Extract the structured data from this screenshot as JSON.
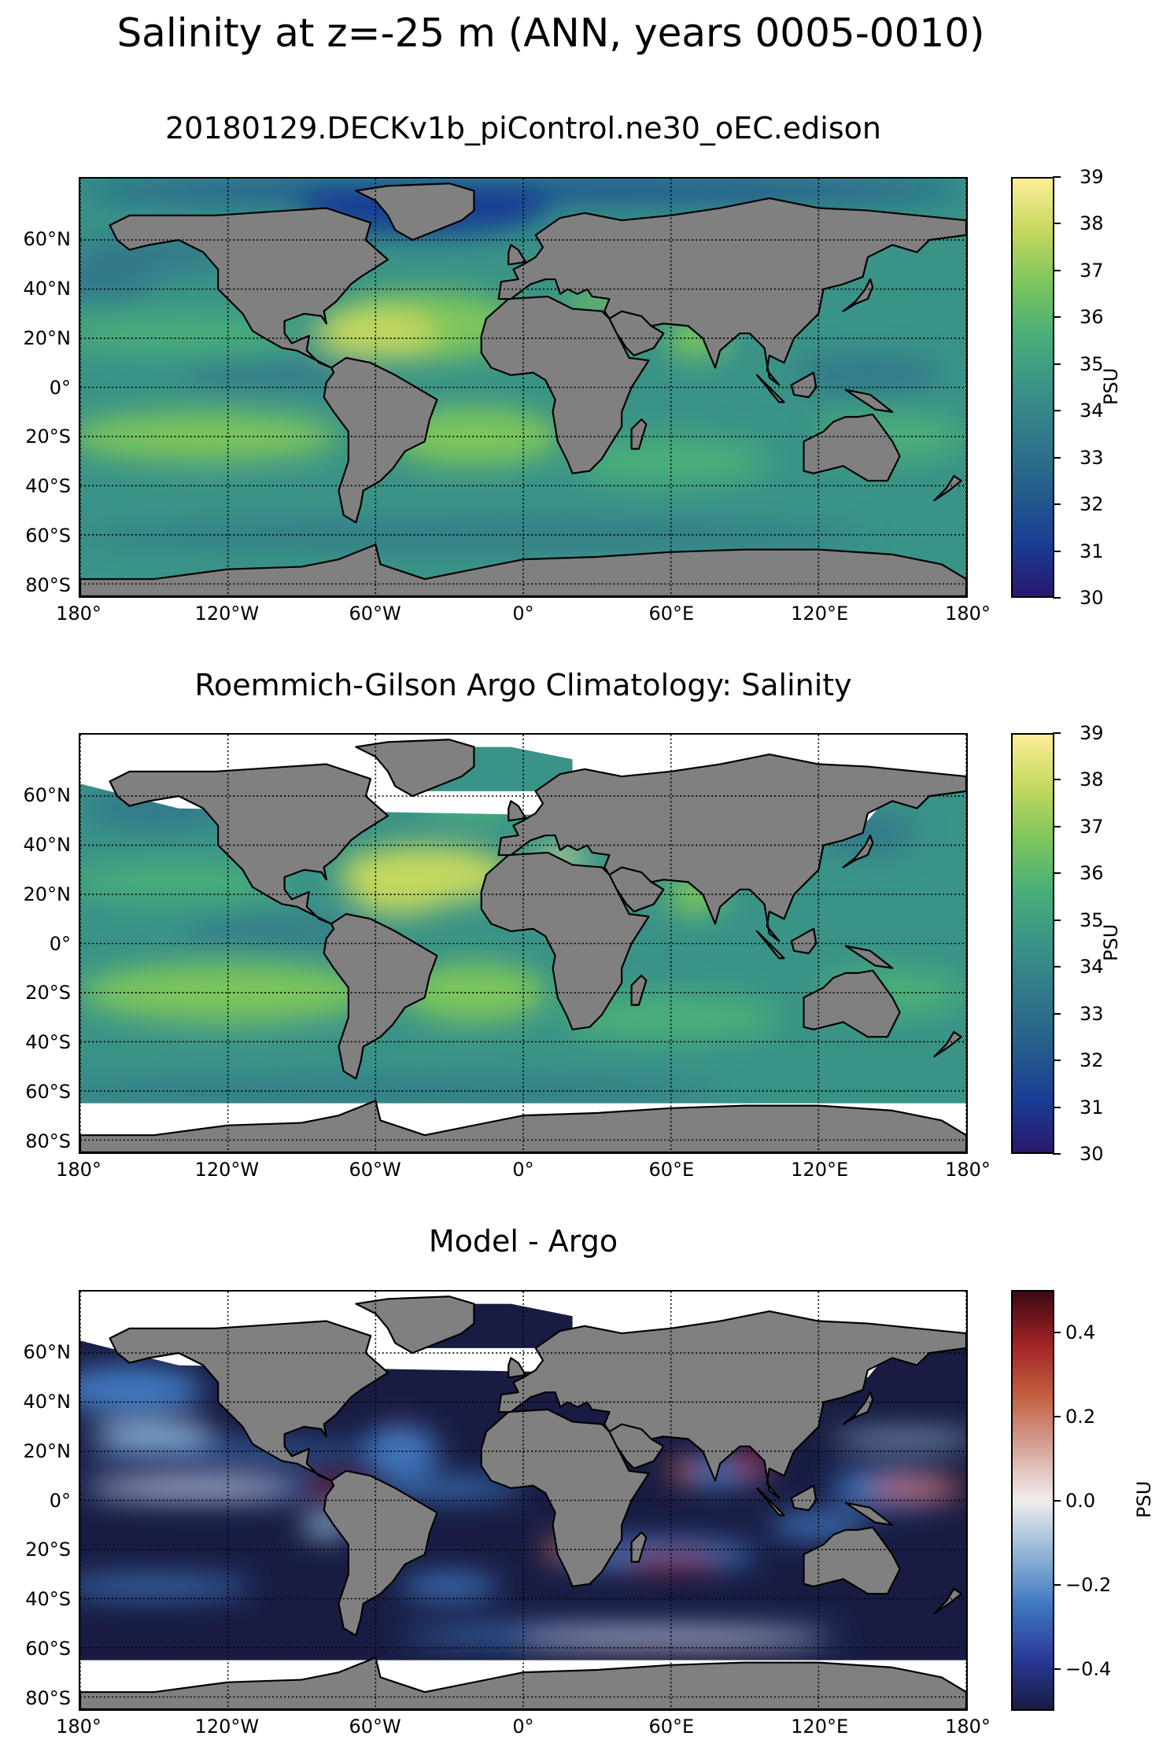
{
  "suptitle": "Salinity at z=-25 m (ANN, years 0005-0010)",
  "lat_labels": [
    "60°N",
    "40°N",
    "20°N",
    "0°",
    "20°S",
    "40°S",
    "60°S",
    "80°S"
  ],
  "lon_labels": [
    "180°",
    "120°W",
    "60°W",
    "0°",
    "60°E",
    "120°E",
    "180°"
  ],
  "colors": {
    "land": "#808080",
    "missing": "#ffffff",
    "haline": [
      "#2a186c",
      "#193d94",
      "#245d8b",
      "#30788a",
      "#3a9387",
      "#49ae79",
      "#7cc65c",
      "#c4d85e",
      "#fdee99"
    ],
    "balance": [
      "#181c43",
      "#2a3b9a",
      "#3f78c0",
      "#92b6d6",
      "#f0ecec",
      "#d6a59a",
      "#c2603f",
      "#a12326",
      "#3c0911"
    ]
  },
  "panels": [
    {
      "title": "20180129.DECKv1b_piControl.ne30_oEC.edison",
      "cbar_label": "PSU",
      "cbar_ticks": [
        "39",
        "38",
        "37",
        "36",
        "35",
        "34",
        "33",
        "32",
        "31",
        "30"
      ],
      "cbar_range": [
        30,
        39
      ]
    },
    {
      "title": "Roemmich-Gilson Argo Climatology: Salinity",
      "cbar_label": "PSU",
      "cbar_ticks": [
        "39",
        "38",
        "37",
        "36",
        "35",
        "34",
        "33",
        "32",
        "31",
        "30"
      ],
      "cbar_range": [
        30,
        39
      ]
    },
    {
      "title": "Model - Argo",
      "cbar_label": "PSU",
      "cbar_ticks": [
        "0.4",
        "0.2",
        "0.0",
        "−0.2",
        "−0.4"
      ],
      "cbar_range": [
        -0.5,
        0.5
      ]
    }
  ]
}
